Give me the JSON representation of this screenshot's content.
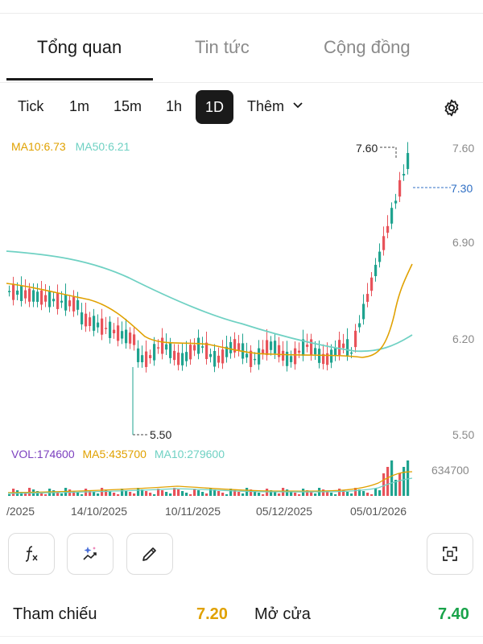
{
  "tabs": [
    {
      "label": "Tổng quan",
      "active": true
    },
    {
      "label": "Tin tức",
      "active": false
    },
    {
      "label": "Cộng đồng",
      "active": false
    }
  ],
  "intervals": {
    "items": [
      "Tick",
      "1m",
      "15m",
      "1h",
      "1D"
    ],
    "selected": "1D",
    "more_label": "Thêm"
  },
  "chart": {
    "ma_legend": {
      "ma10": "MA10:6.73",
      "ma50": "MA50:6.21"
    },
    "y_axis": [
      "7.60",
      "7.30",
      "6.90",
      "6.20",
      "5.50"
    ],
    "current_price": "7.30",
    "high_label": "7.60",
    "low_label": "5.50",
    "volume_legend": {
      "vol": "VOL:174600",
      "ma5": "MA5:435700",
      "ma10": "MA10:279600"
    },
    "volume_max": "634700",
    "x_axis": [
      "/2025",
      "14/10/2025",
      "10/11/2025",
      "05/12/2025",
      "05/01/2026"
    ],
    "colors": {
      "up": "#1fa38f",
      "down": "#e8535a",
      "ma10": "#e0a100",
      "ma50": "#6fd1c3",
      "price_tag": "#2f6fc4"
    }
  },
  "tools": [
    "function-icon",
    "ai-sparkle-icon",
    "pencil-icon",
    "fullscreen-icon"
  ],
  "stats": [
    {
      "label": "Tham chiếu",
      "value": "7.20",
      "color": "#e0a100"
    },
    {
      "label": "Mở cửa",
      "value": "7.40",
      "color": "#19a34a"
    }
  ]
}
